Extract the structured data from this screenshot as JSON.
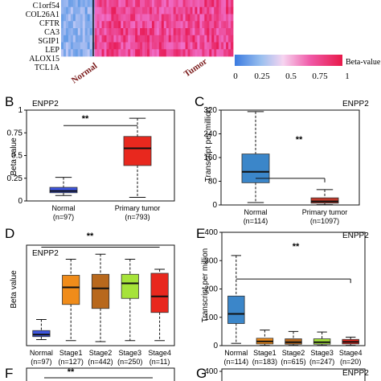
{
  "heatmap": {
    "genes": [
      "C1orf54",
      "COL26A1",
      "CFTR",
      "CA3",
      "SGIP1",
      "LEP",
      "ALOX15",
      "TCL1A"
    ],
    "group_labels": [
      "Normal",
      "Tumor"
    ],
    "legend_label": "Beta-value",
    "legend_ticks": [
      "0",
      "0.25",
      "0.5",
      "0.75",
      "1"
    ],
    "colors": {
      "low": "#4a90e2",
      "mid": "#ffffff",
      "high": "#e8194a"
    }
  },
  "panels": {
    "B": {
      "letter": "B",
      "gene": "ENPP2",
      "ylabel": "Beta value",
      "sig": "**"
    },
    "C": {
      "letter": "C",
      "gene": "ENPP2",
      "ylabel": "Transcript per million",
      "sig": "**"
    },
    "D": {
      "letter": "D",
      "gene": "ENPP2",
      "ylabel": "Beta value",
      "sig": "**"
    },
    "E": {
      "letter": "E",
      "gene": "ENPP2",
      "ylabel": "Transcript per million",
      "sig": "**"
    },
    "F": {
      "letter": "F",
      "sig": "**"
    },
    "G": {
      "letter": "G",
      "gene": "ENPP2"
    }
  },
  "chart_data": [
    {
      "panel": "B",
      "type": "box",
      "categories": [
        "Normal\n(n=97)",
        "Primary tumor\n(n=793)"
      ],
      "ylim": [
        0,
        1
      ],
      "boxes": [
        {
          "min": 0.06,
          "q1": 0.09,
          "median": 0.11,
          "q3": 0.15,
          "max": 0.26,
          "color": "#3d55e0"
        },
        {
          "min": 0.04,
          "q1": 0.39,
          "median": 0.58,
          "q3": 0.71,
          "max": 0.91,
          "color": "#e8281e"
        }
      ]
    },
    {
      "panel": "C",
      "type": "box",
      "categories": [
        "Normal\n(n=114)",
        "Primary tumor\n(n=1097)"
      ],
      "ylim": [
        0,
        320
      ],
      "boxes": [
        {
          "min": 8,
          "q1": 75,
          "median": 112,
          "q3": 172,
          "max": 315,
          "color": "#3b86c9"
        },
        {
          "min": 1,
          "q1": 6,
          "median": 12,
          "q3": 24,
          "max": 52,
          "color": "#c0392b"
        }
      ]
    },
    {
      "panel": "D",
      "type": "box",
      "categories": [
        "Normal\n(n=97)",
        "Stage1\n(n=127)",
        "Stage2\n(n=442)",
        "Stage3\n(n=250)",
        "Stage4\n(n=11)"
      ],
      "ylim": [
        0,
        1
      ],
      "yticks": [],
      "boxes": [
        {
          "min": 0.06,
          "q1": 0.09,
          "median": 0.11,
          "q3": 0.15,
          "max": 0.26,
          "color": "#3d55e0"
        },
        {
          "min": 0.05,
          "q1": 0.41,
          "median": 0.58,
          "q3": 0.7,
          "max": 0.86,
          "color": "#f08c1a"
        },
        {
          "min": 0.04,
          "q1": 0.37,
          "median": 0.57,
          "q3": 0.71,
          "max": 0.91,
          "color": "#b8681c"
        },
        {
          "min": 0.05,
          "q1": 0.47,
          "median": 0.62,
          "q3": 0.71,
          "max": 0.86,
          "color": "#a6e33a"
        },
        {
          "min": 0.05,
          "q1": 0.33,
          "median": 0.49,
          "q3": 0.72,
          "max": 0.76,
          "color": "#e8281e"
        }
      ]
    },
    {
      "panel": "E",
      "type": "box",
      "categories": [
        "Normal\n(n=114)",
        "Stage1\n(n=183)",
        "Stage2\n(n=615)",
        "Stage3\n(n=247)",
        "Stage4\n(n=20)"
      ],
      "ylim": [
        0,
        400
      ],
      "yticks": [
        0,
        100,
        200,
        300,
        400
      ],
      "boxes": [
        {
          "min": 8,
          "q1": 78,
          "median": 112,
          "q3": 175,
          "max": 318,
          "color": "#3b86c9"
        },
        {
          "min": 1,
          "q1": 6,
          "median": 15,
          "q3": 26,
          "max": 55,
          "color": "#f08c1a"
        },
        {
          "min": 1,
          "q1": 5,
          "median": 12,
          "q3": 24,
          "max": 50,
          "color": "#b8681c"
        },
        {
          "min": 1,
          "q1": 5,
          "median": 12,
          "q3": 24,
          "max": 48,
          "color": "#a6e33a"
        },
        {
          "min": 1,
          "q1": 6,
          "median": 13,
          "q3": 22,
          "max": 30,
          "color": "#e8281e"
        }
      ]
    },
    {
      "panel": "G",
      "type": "box",
      "yticks": [
        400
      ],
      "boxes": []
    }
  ]
}
